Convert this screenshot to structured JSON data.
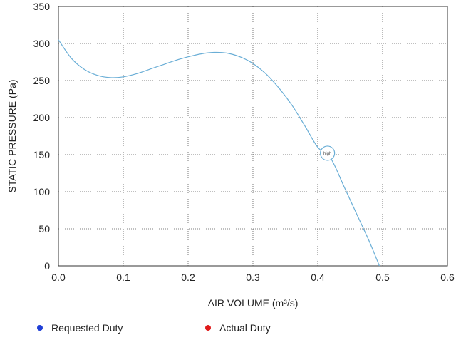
{
  "chart_data": {
    "type": "line",
    "xlabel": "AIR VOLUME (m³/s)",
    "ylabel": "STATIC PRESSURE (Pa)",
    "xlim": [
      0,
      0.6
    ],
    "ylim": [
      0,
      350
    ],
    "x_ticks": [
      "0.0",
      "0.1",
      "0.2",
      "0.3",
      "0.4",
      "0.5",
      "0.6"
    ],
    "y_ticks": [
      "0",
      "50",
      "100",
      "150",
      "200",
      "250",
      "300",
      "350"
    ],
    "grid": true,
    "series": [
      {
        "x": [
          0.0,
          0.02,
          0.04,
          0.06,
          0.08,
          0.1,
          0.12,
          0.14,
          0.16,
          0.18,
          0.2,
          0.22,
          0.24,
          0.26,
          0.28,
          0.3,
          0.32,
          0.34,
          0.36,
          0.38,
          0.4,
          0.42,
          0.44,
          0.46,
          0.48,
          0.495
        ],
        "y": [
          305,
          280,
          265,
          257,
          254,
          255,
          259,
          265,
          271,
          277,
          282,
          286,
          288,
          287,
          282,
          273,
          259,
          240,
          217,
          189,
          160,
          145,
          108,
          70,
          32,
          0
        ],
        "color": "#6aaed6"
      }
    ],
    "annotations": [
      {
        "label": "high",
        "x": 0.415,
        "y": 152
      }
    ]
  },
  "legend": [
    {
      "label": "Requested Duty",
      "color": "#1f3fd6"
    },
    {
      "label": "Actual Duty",
      "color": "#e01a1a"
    }
  ]
}
